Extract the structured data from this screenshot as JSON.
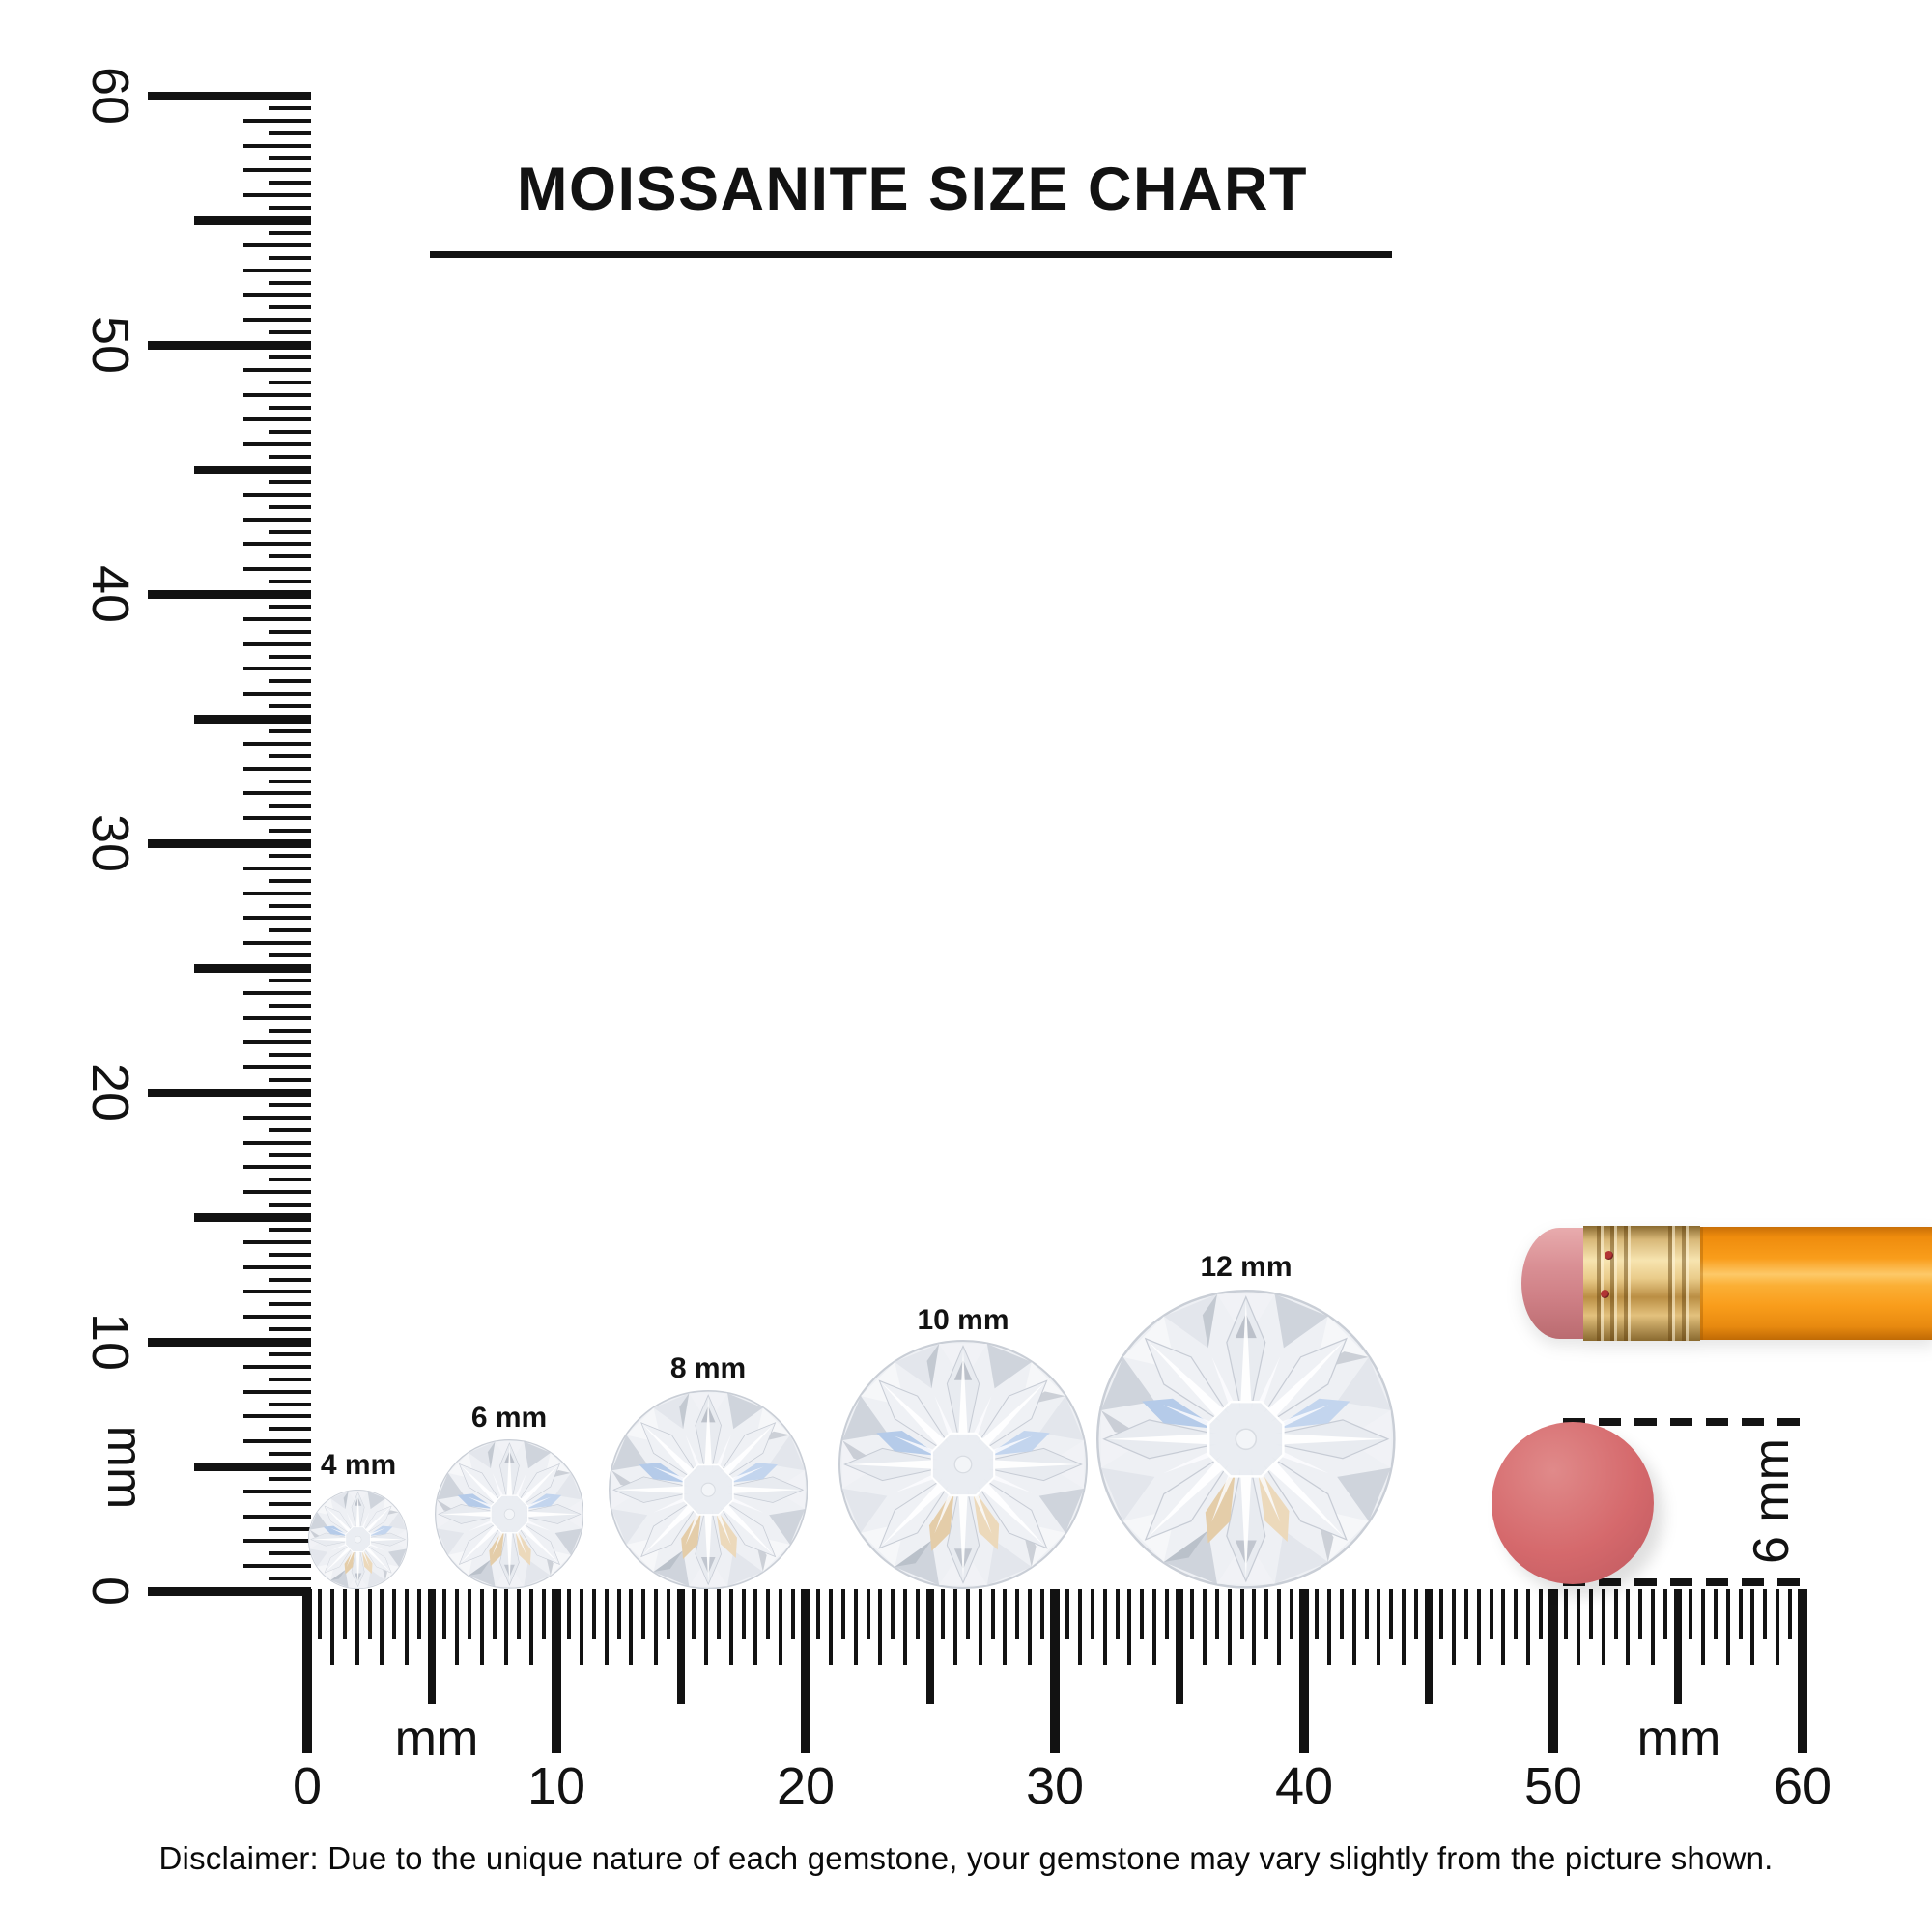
{
  "title": "MOISSANITE SIZE CHART",
  "disclaimer": "Disclaimer: Due to the unique nature of each gemstone, your gemstone may vary slightly from the picture shown.",
  "rulers": {
    "vertical": {
      "unit_label": "mm",
      "min": 0,
      "max": 60,
      "major_labels": [
        0,
        10,
        20,
        30,
        40,
        50,
        60
      ]
    },
    "horizontal": {
      "unit_labels": [
        "mm",
        "mm"
      ],
      "min": 0,
      "max": 60,
      "major_labels": [
        0,
        10,
        20,
        30,
        40,
        50,
        60
      ]
    }
  },
  "gems": [
    {
      "label": "4 mm",
      "size_mm": 4
    },
    {
      "label": "6 mm",
      "size_mm": 6
    },
    {
      "label": "8 mm",
      "size_mm": 8
    },
    {
      "label": "10 mm",
      "size_mm": 10
    },
    {
      "label": "12 mm",
      "size_mm": 12
    }
  ],
  "eraser_callout": {
    "label": "6 mm",
    "diameter_mm": 6
  },
  "colors": {
    "ink": "#121212",
    "eraser_face": "#d5696c",
    "pencil_eraser_tip": "#d98f94",
    "ferrule_gold": "#d8b878",
    "pencil_orange": "#f99d1b",
    "gem_palette": [
      "#ffffff",
      "#f1f2f6",
      "#e3e6ec",
      "#cfd4dc",
      "#b5cbe9",
      "#e4cda9",
      "#a9b0bc"
    ]
  }
}
